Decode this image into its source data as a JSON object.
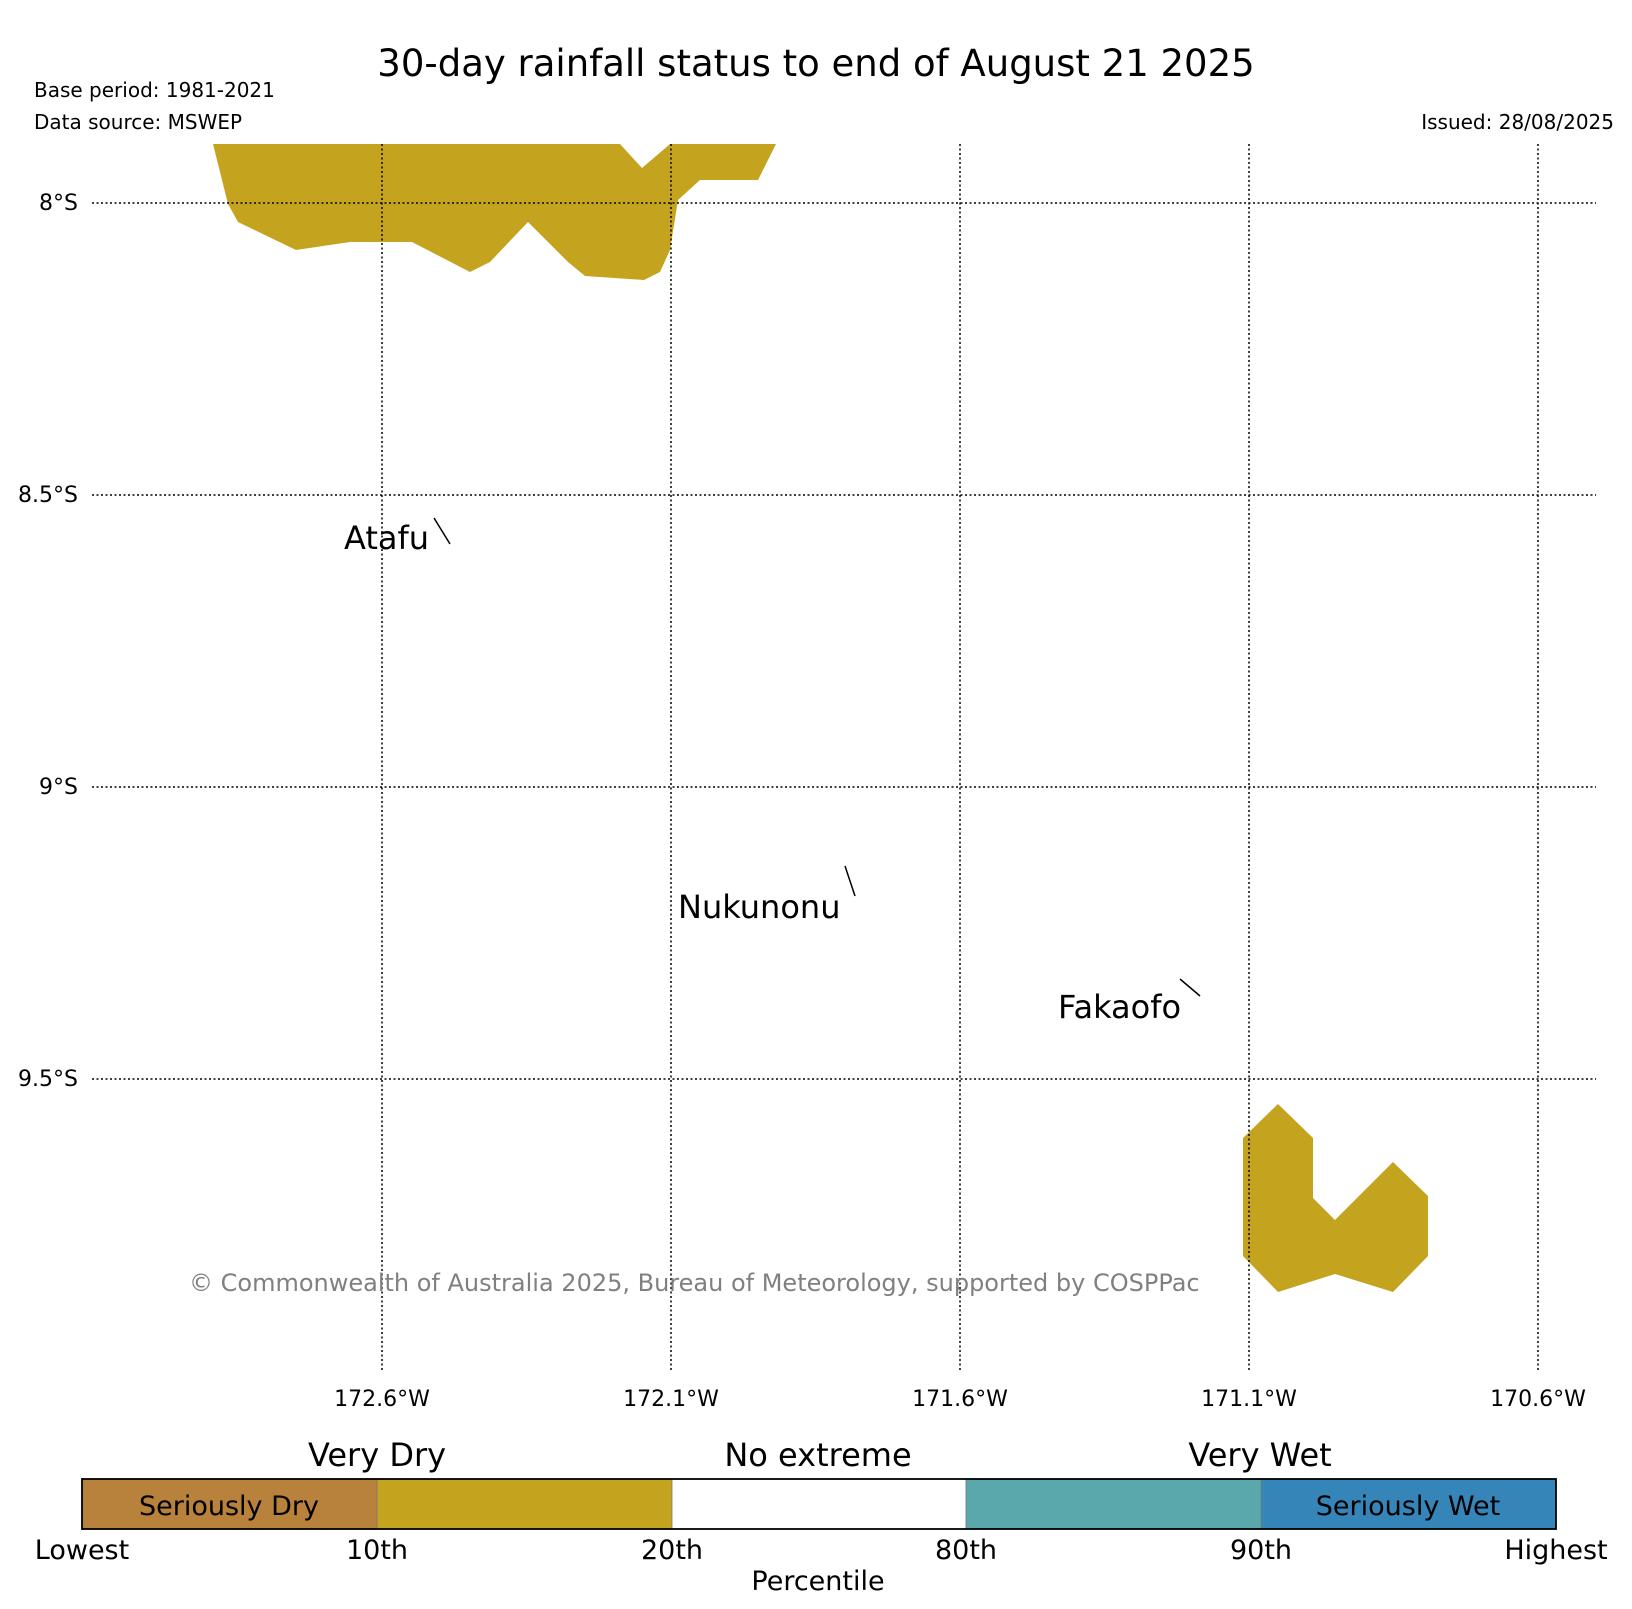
{
  "header": {
    "title": "30-day rainfall status to end of August 21 2025",
    "base_period": "Base period: 1981-2021",
    "data_source": "Data source: MSWEP",
    "issued": "Issued: 28/08/2025"
  },
  "map": {
    "lat_labels": [
      "8°S",
      "8.5°S",
      "9°S",
      "9.5°S"
    ],
    "lon_labels": [
      "172.6°W",
      "172.1°W",
      "171.6°W",
      "171.1°W",
      "170.6°W"
    ],
    "places": [
      "Atafu",
      "Nukunonu",
      "Fakaofo"
    ],
    "copyright": "© Commonwealth of Australia 2025, Bureau of Meteorology, supported by COSPPac",
    "regions": [
      {
        "name": "very-dry-region-north",
        "category": "Very Dry",
        "color": "#C4A41E"
      },
      {
        "name": "very-dry-region-southeast",
        "category": "Very Dry",
        "color": "#C4A41E"
      }
    ]
  },
  "legend": {
    "categories": [
      "Very Dry",
      "No extreme",
      "Very Wet"
    ],
    "segments": [
      {
        "label": "Seriously Dry",
        "color": "#B8813C"
      },
      {
        "label": "",
        "color": "#C4A41E"
      },
      {
        "label": "",
        "color": "#FFFFFF"
      },
      {
        "label": "",
        "color": "#5BA8AC"
      },
      {
        "label": "Seriously Wet",
        "color": "#3585B9"
      }
    ],
    "ticks": [
      "Lowest",
      "10th",
      "20th",
      "80th",
      "90th",
      "Highest"
    ],
    "axis_label": "Percentile"
  }
}
